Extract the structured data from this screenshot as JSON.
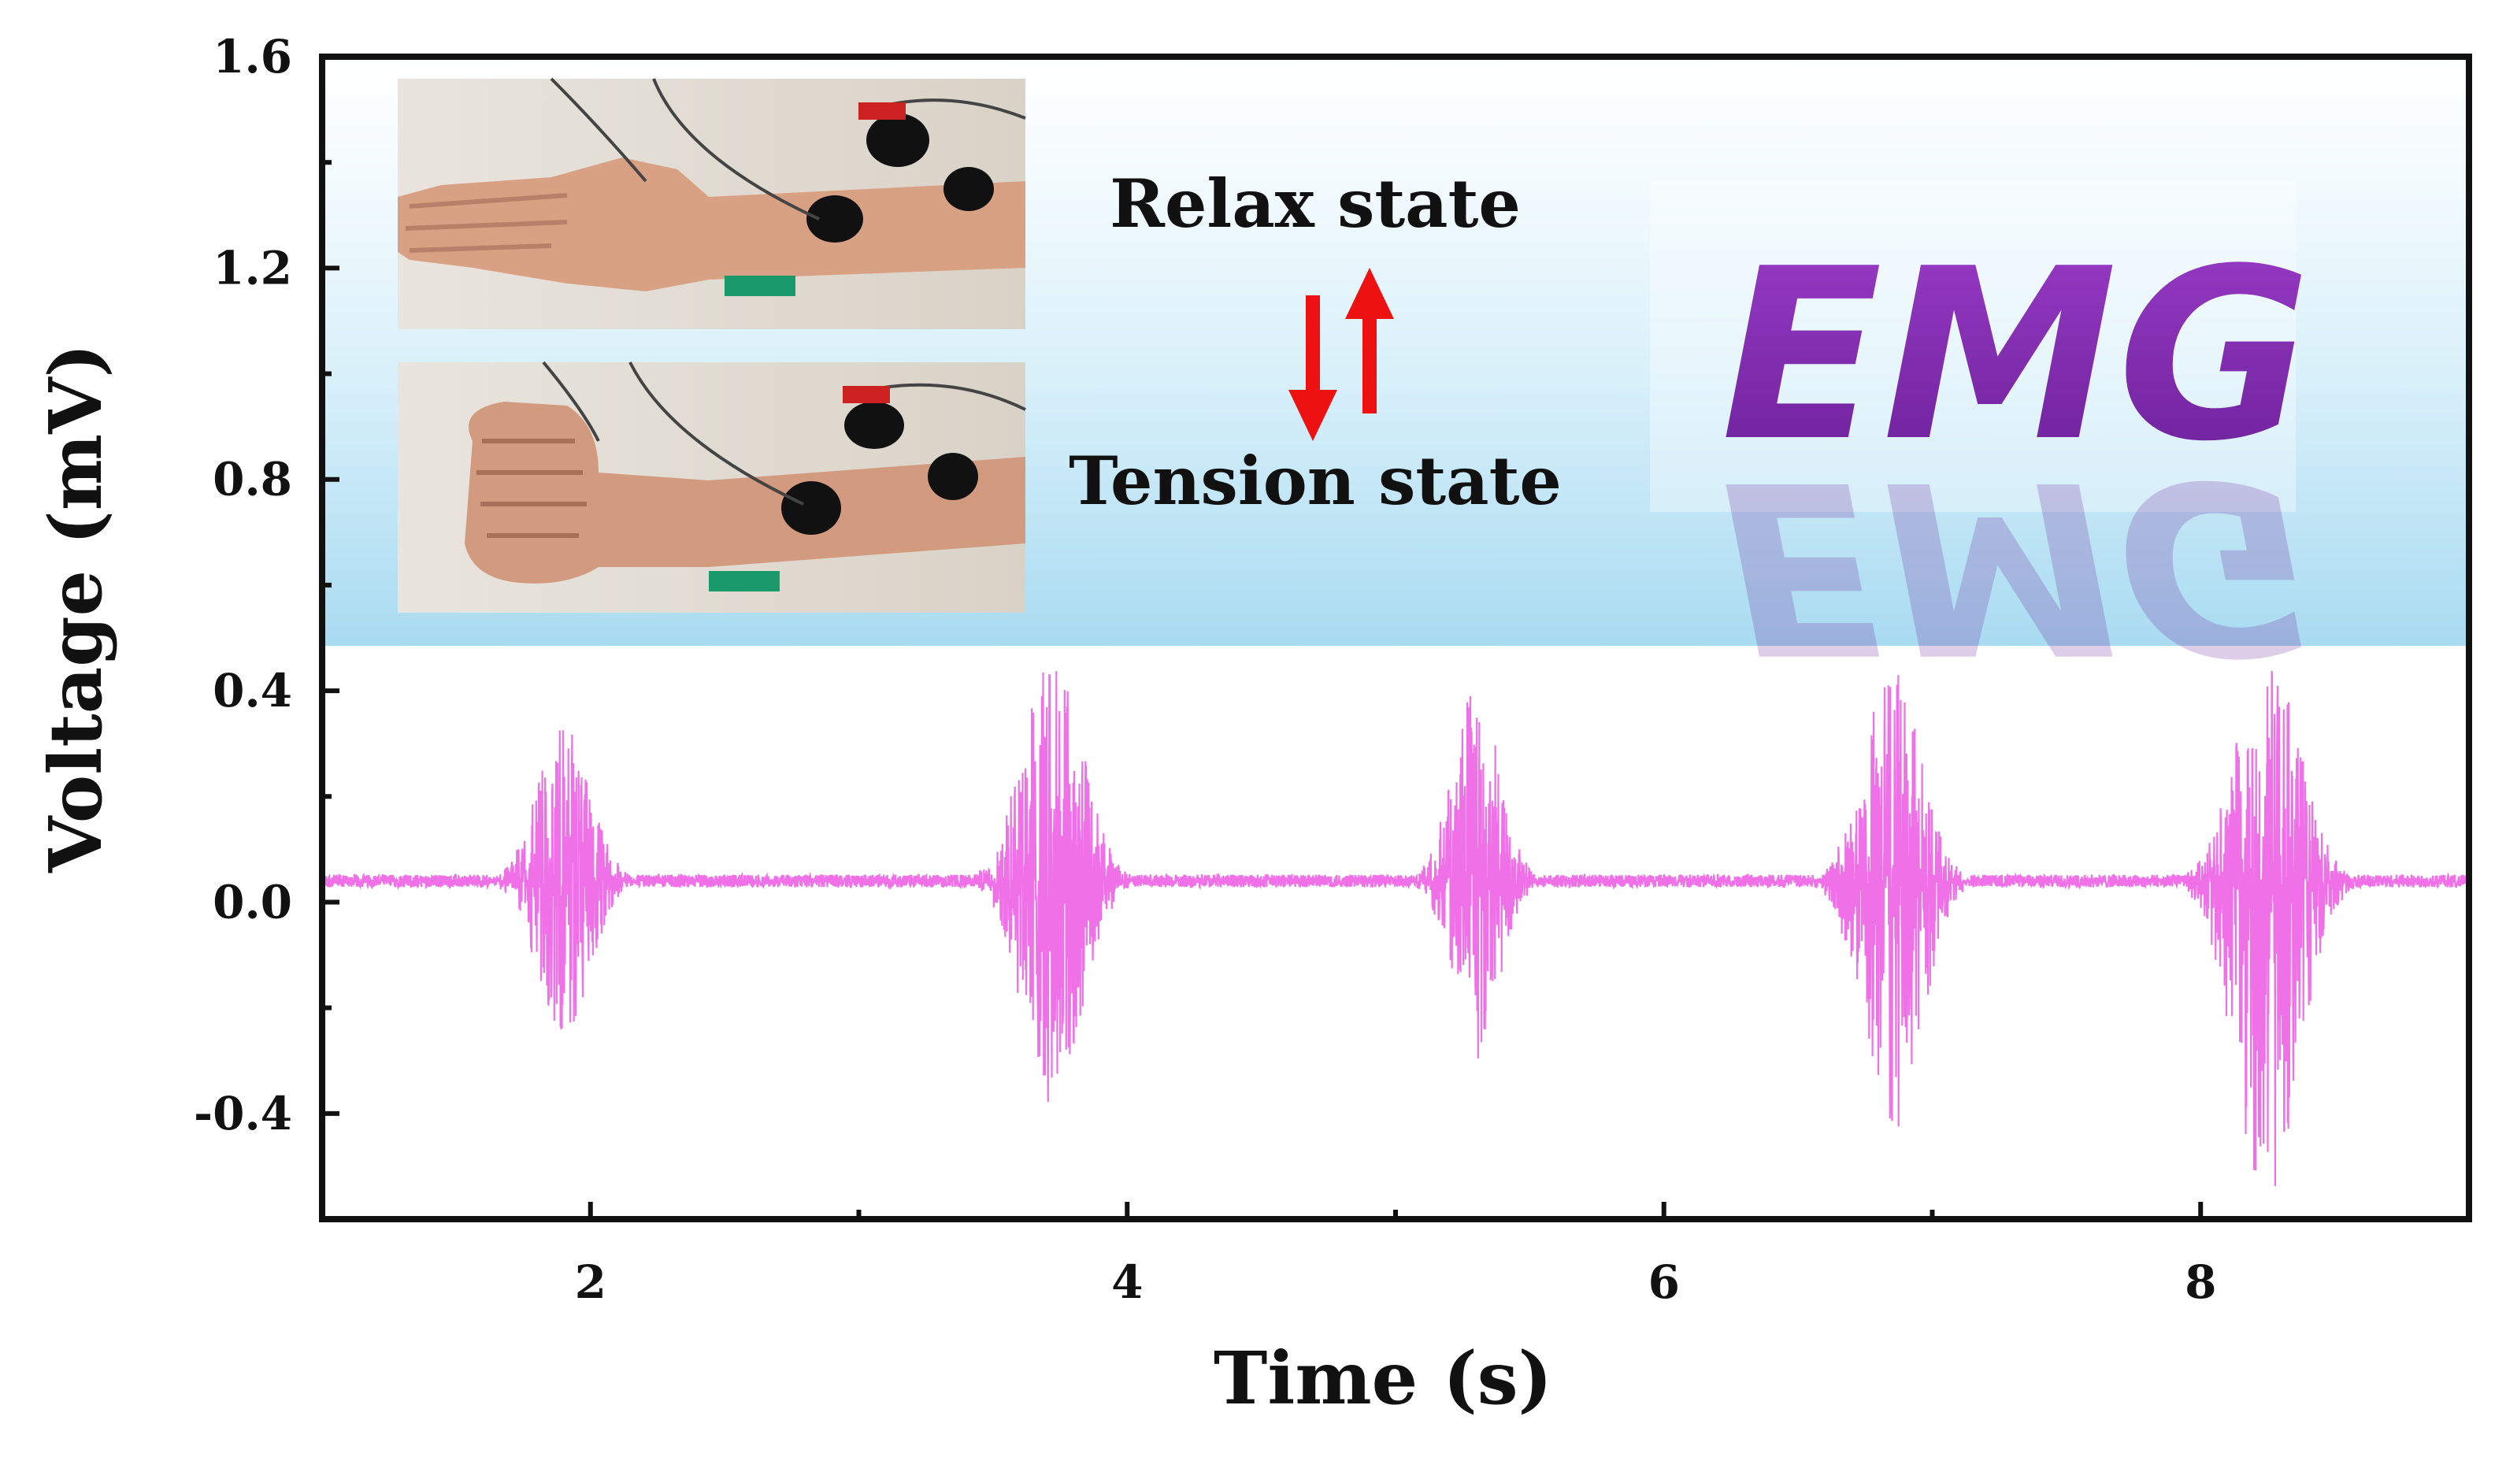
{
  "colors": {
    "signal": "#f070e8",
    "axis": "#111111",
    "arrow": "#ee1111",
    "emg": "#7a2aa8",
    "inset_bg": "#bfe5f5"
  },
  "chart_data": {
    "type": "line",
    "xlabel": "Time (s)",
    "ylabel": "Voltage (mV)",
    "xlim": [
      1,
      9
    ],
    "ylim": [
      -0.6,
      1.6
    ],
    "xticks": [
      2,
      4,
      6,
      8
    ],
    "xtick_labels": [
      "2",
      "4",
      "6",
      "8"
    ],
    "yticks": [
      1.6,
      1.2,
      0.8,
      0.4,
      0.0,
      -0.4
    ],
    "ytick_labels": [
      "1.6",
      "1.2",
      "0.8",
      "0.4",
      "0.0",
      "-0.4"
    ],
    "baseline": 0.04,
    "noise_amplitude": 0.012,
    "bursts": [
      {
        "center": 1.9,
        "width": 0.25,
        "max": 0.34,
        "min": -0.26
      },
      {
        "center": 3.72,
        "width": 0.28,
        "max": 0.48,
        "min": -0.4
      },
      {
        "center": 5.3,
        "width": 0.22,
        "max": 0.43,
        "min": -0.3
      },
      {
        "center": 6.85,
        "width": 0.27,
        "max": 0.44,
        "min": -0.46
      },
      {
        "center": 8.25,
        "width": 0.3,
        "max": 0.47,
        "min": -0.58
      }
    ],
    "grid": false,
    "legend": "none"
  },
  "inset": {
    "relax_label": "Relax state",
    "tension_label": "Tension state",
    "emg_label": "EMG"
  },
  "icons": {
    "down_arrow": "down-arrow-icon",
    "up_arrow": "up-arrow-icon"
  }
}
